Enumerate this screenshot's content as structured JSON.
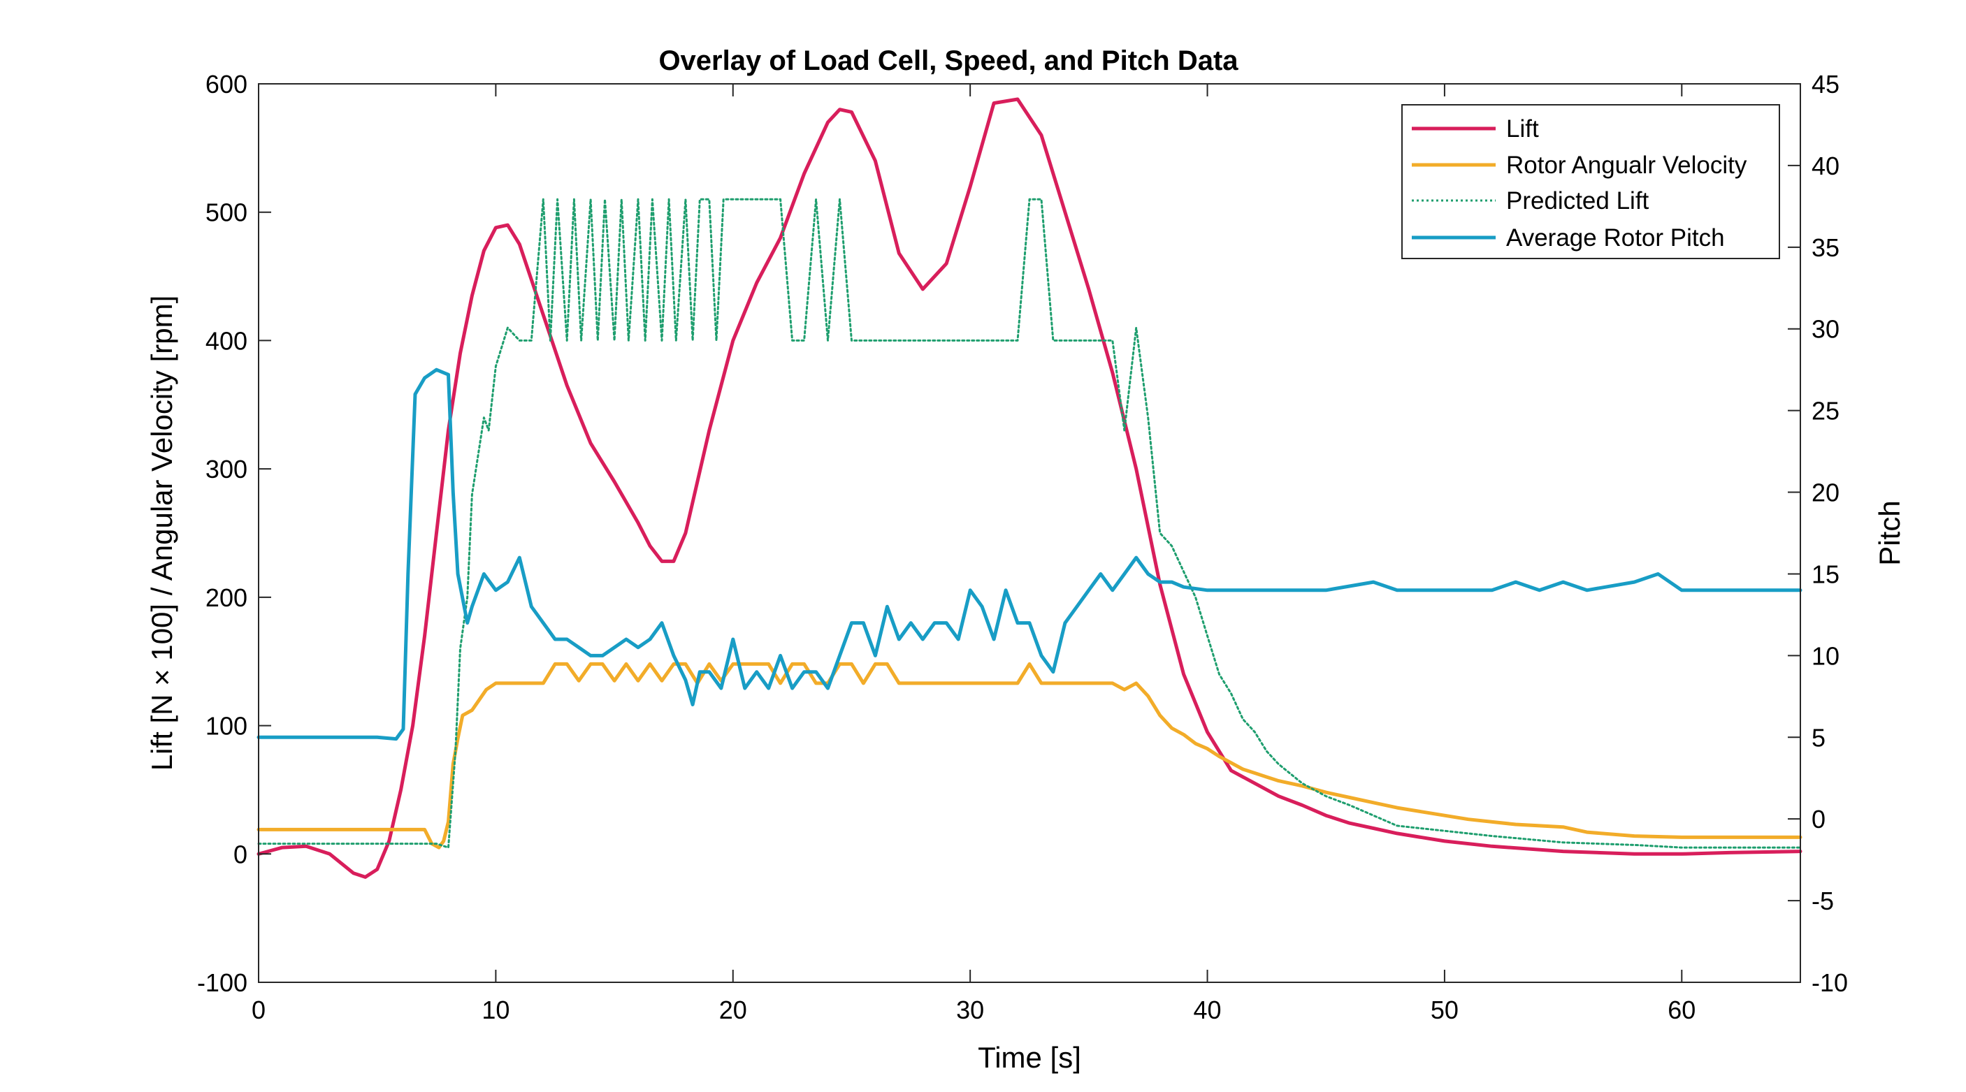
{
  "chart_data": {
    "type": "line",
    "title": "Overlay of Load Cell, Speed, and Pitch Data",
    "xlabel": "Time [s]",
    "ylabel": "Lift [N × 100] / Angular Velocity [rpm]",
    "ylabel_right": "Pitch",
    "xlim": [
      0,
      65
    ],
    "ylim": [
      -100,
      600
    ],
    "ylim_right": [
      -10,
      45
    ],
    "xticks": [
      "0",
      "10",
      "20",
      "30",
      "40",
      "50",
      "60"
    ],
    "yticks_left": [
      "-100",
      "0",
      "100",
      "200",
      "300",
      "400",
      "500",
      "600"
    ],
    "yticks_right": [
      "-10",
      "-5",
      "0",
      "5",
      "10",
      "15",
      "20",
      "25",
      "30",
      "35",
      "40",
      "45"
    ],
    "grid": false,
    "legend": "top-right",
    "series": [
      {
        "name": "Lift",
        "axis": "left",
        "color": "#d81e5b",
        "style": "solid",
        "x": [
          0,
          1,
          2,
          3,
          4,
          4.5,
          5,
          5.5,
          6,
          6.5,
          7,
          7.5,
          8,
          8.5,
          9,
          9.5,
          10,
          10.5,
          11,
          12,
          13,
          14,
          15,
          16,
          16.5,
          17,
          17.5,
          18,
          19,
          20,
          21,
          22,
          23,
          24,
          24.5,
          25,
          26,
          27,
          28,
          29,
          30,
          31,
          32,
          33,
          34,
          35,
          36,
          37,
          38,
          39,
          40,
          41,
          42,
          43,
          44,
          45,
          46,
          47,
          48,
          50,
          52,
          55,
          58,
          60,
          62,
          65
        ],
        "y": [
          0,
          5,
          6,
          0,
          -15,
          -18,
          -12,
          10,
          50,
          100,
          170,
          250,
          330,
          390,
          435,
          470,
          488,
          490,
          475,
          420,
          365,
          320,
          290,
          258,
          240,
          228,
          228,
          250,
          330,
          400,
          445,
          480,
          530,
          570,
          580,
          578,
          540,
          468,
          440,
          460,
          520,
          585,
          588,
          560,
          500,
          440,
          375,
          300,
          210,
          140,
          95,
          65,
          55,
          45,
          38,
          30,
          24,
          20,
          16,
          10,
          6,
          2,
          0,
          0,
          1,
          2
        ]
      },
      {
        "name": "Rotor Angualr Velocity",
        "axis": "left",
        "color": "#f2ac29",
        "style": "solid",
        "x": [
          0,
          6.5,
          7,
          7.3,
          7.6,
          7.8,
          8.0,
          8.2,
          8.4,
          8.6,
          9.0,
          9.3,
          9.6,
          10.0,
          10.5,
          12.0,
          12.5,
          13.0,
          13.5,
          14.0,
          14.5,
          15.0,
          15.5,
          16.0,
          16.5,
          17.0,
          17.5,
          18.0,
          18.5,
          19.0,
          19.5,
          20.0,
          20.5,
          21.0,
          21.5,
          22.0,
          22.5,
          23.0,
          23.5,
          24.0,
          24.5,
          25.0,
          25.5,
          26.0,
          26.5,
          27.0,
          32.0,
          32.5,
          33.0,
          33.5,
          34.0,
          35.0,
          36.0,
          36.5,
          37.0,
          37.5,
          38.0,
          38.5,
          39.0,
          39.5,
          40.0,
          40.5,
          41.0,
          41.5,
          42.0,
          42.5,
          43.0,
          44.0,
          45.0,
          46.0,
          47.0,
          48.0,
          49.0,
          50.0,
          51.0,
          53.0,
          54.0,
          55.0,
          56.0,
          58.0,
          60.0,
          65.0
        ],
        "y": [
          19,
          19,
          19,
          8,
          5,
          10,
          25,
          70,
          90,
          108,
          112,
          120,
          128,
          133,
          133,
          133,
          148,
          148,
          135,
          148,
          148,
          135,
          148,
          135,
          148,
          135,
          148,
          148,
          133,
          148,
          135,
          148,
          148,
          148,
          148,
          133,
          148,
          148,
          133,
          133,
          148,
          148,
          133,
          148,
          148,
          133,
          133,
          148,
          133,
          133,
          133,
          133,
          133,
          128,
          133,
          123,
          108,
          98,
          93,
          86,
          82,
          76,
          71,
          66,
          63,
          60,
          57,
          53,
          48,
          44,
          40,
          36,
          33,
          30,
          27,
          23,
          22,
          21,
          17,
          14,
          13,
          13
        ]
      },
      {
        "name": "Predicted Lift",
        "axis": "left",
        "color": "#1e9e6e",
        "style": "dotted",
        "x": [
          0,
          7.5,
          8.0,
          8.3,
          8.5,
          8.8,
          9.0,
          9.5,
          9.7,
          10.0,
          10.5,
          11.0,
          11.5,
          12.0,
          12.3,
          12.6,
          13.0,
          13.3,
          13.6,
          14.0,
          14.3,
          14.6,
          15.0,
          15.3,
          15.6,
          16.0,
          16.3,
          16.6,
          17.0,
          17.3,
          17.6,
          18.0,
          18.3,
          18.6,
          19.0,
          19.3,
          19.6,
          20.0,
          20.5,
          21.0,
          21.5,
          22.0,
          22.5,
          23.0,
          23.5,
          24.0,
          24.5,
          25.0,
          25.5,
          26.0,
          26.5,
          27.0,
          28.0,
          29.0,
          30.0,
          31.0,
          32.0,
          32.5,
          33.0,
          33.5,
          34.0,
          35.0,
          36.0,
          36.5,
          37.0,
          37.5,
          38.0,
          38.5,
          39.0,
          39.5,
          40.0,
          40.5,
          41.0,
          41.5,
          42.0,
          42.5,
          43.0,
          44.0,
          45.0,
          46.0,
          47.0,
          48.0,
          50.0,
          52.0,
          55.0,
          58.0,
          60.0,
          65.0
        ],
        "y": [
          8,
          8,
          5,
          80,
          160,
          200,
          280,
          340,
          330,
          380,
          410,
          400,
          400,
          510,
          400,
          510,
          400,
          510,
          400,
          510,
          400,
          510,
          400,
          510,
          400,
          510,
          400,
          510,
          400,
          510,
          400,
          510,
          400,
          510,
          510,
          400,
          510,
          510,
          510,
          510,
          510,
          510,
          400,
          400,
          510,
          400,
          510,
          400,
          400,
          400,
          400,
          400,
          400,
          400,
          400,
          400,
          400,
          510,
          510,
          400,
          400,
          400,
          400,
          330,
          410,
          340,
          250,
          240,
          220,
          200,
          170,
          140,
          125,
          105,
          95,
          80,
          70,
          55,
          45,
          38,
          30,
          22,
          18,
          14,
          9,
          7,
          5,
          5
        ]
      },
      {
        "name": "Average Rotor Pitch",
        "axis": "right",
        "color": "#189dc5",
        "style": "solid",
        "x": [
          0,
          1,
          2,
          3,
          4,
          5,
          5.8,
          6.1,
          6.3,
          6.6,
          7.0,
          7.5,
          8.0,
          8.2,
          8.4,
          8.8,
          9.0,
          9.5,
          10.0,
          10.5,
          11.0,
          11.5,
          12.0,
          12.5,
          13.0,
          13.5,
          14.0,
          14.5,
          15.0,
          15.5,
          16.0,
          16.5,
          17.0,
          17.5,
          18.0,
          18.3,
          18.6,
          19.0,
          19.5,
          20.0,
          20.5,
          21.0,
          21.5,
          22.0,
          22.5,
          23.0,
          23.5,
          24.0,
          24.5,
          25.0,
          25.5,
          26.0,
          26.5,
          27.0,
          27.5,
          28.0,
          28.5,
          29.0,
          29.5,
          30.0,
          30.5,
          31.0,
          31.5,
          32.0,
          32.5,
          33.0,
          33.5,
          34.0,
          34.5,
          35.0,
          35.5,
          36.0,
          36.5,
          37.0,
          37.5,
          38.0,
          38.5,
          39.0,
          40.0,
          42.0,
          45.0,
          47.0,
          48.0,
          50.0,
          52.0,
          53.0,
          54.0,
          55.0,
          56.0,
          58.0,
          59.0,
          60.0,
          62.0,
          65.0
        ],
        "y": [
          5,
          5,
          5,
          5,
          5,
          5,
          4.9,
          5.5,
          15,
          26,
          27,
          27.5,
          27.2,
          20,
          15,
          12,
          13,
          15,
          14,
          14.5,
          16,
          13,
          12,
          11,
          11,
          10.5,
          10,
          10,
          10.5,
          11,
          10.5,
          11,
          12,
          10,
          8.5,
          7,
          9,
          9,
          8,
          11,
          8,
          9,
          8,
          10,
          8,
          9,
          9,
          8,
          10,
          12,
          12,
          10,
          13,
          11,
          12,
          11,
          12,
          12,
          11,
          14,
          13,
          11,
          14,
          12,
          12,
          10,
          9,
          12,
          13,
          14,
          15,
          14,
          15,
          16,
          15,
          14.5,
          14.5,
          14.2,
          14,
          14,
          14,
          14.5,
          14,
          14,
          14,
          14.5,
          14,
          14.5,
          14,
          14.5,
          15,
          14,
          14,
          14
        ]
      }
    ]
  }
}
